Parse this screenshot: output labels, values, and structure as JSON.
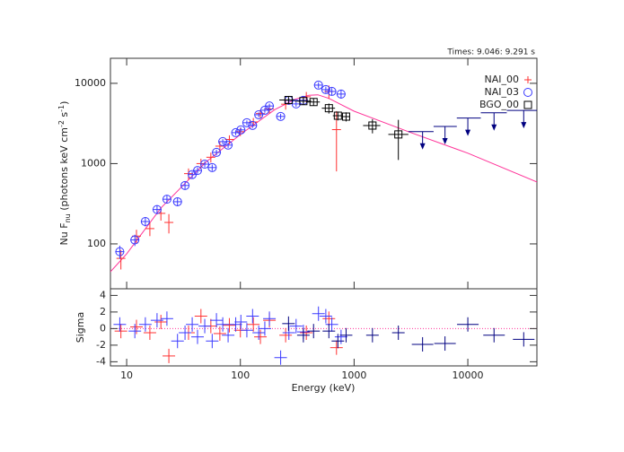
{
  "chart_data": [
    {
      "type": "scatter",
      "annotation": "Times: 9.046: 9.291 s",
      "y_label": [
        "Nu F",
        "nu",
        " (photons keV cm",
        "-2",
        " s",
        "-1",
        ")"
      ],
      "xscale": "log",
      "yscale": "log",
      "xlim": [
        7.2,
        40500
      ],
      "ylim": [
        27.6,
        20500
      ],
      "xticks": [
        10,
        100,
        1000,
        10000
      ],
      "yticks": [
        100,
        1000,
        10000
      ],
      "legend": "upper right",
      "series": [
        {
          "name": "NAI_00",
          "color": "#ff3030",
          "marker": "plus",
          "x": [
            8.9,
            12.2,
            16,
            20,
            23.5,
            35,
            45,
            55,
            66,
            80,
            100,
            130,
            150,
            180,
            250,
            380,
            600,
            700
          ],
          "values": [
            66,
            125,
            155,
            240,
            185,
            750,
            1000,
            1200,
            1650,
            2000,
            2500,
            3300,
            4200,
            4800,
            5500,
            6800,
            7900,
            2650
          ],
          "y_err": [
            18,
            25,
            30,
            45,
            50,
            120,
            150,
            170,
            220,
            250,
            300,
            400,
            500,
            600,
            800,
            1000,
            1500,
            1850
          ]
        },
        {
          "name": "NAI_03",
          "color": "#3a3aff",
          "marker": "circle",
          "x": [
            8.7,
            11.8,
            14.6,
            18.5,
            22.6,
            28,
            32.6,
            37.7,
            42,
            48.6,
            56.5,
            61.6,
            70,
            78,
            91,
            101,
            114,
            128,
            145,
            164,
            180,
            226,
            267,
            309,
            358,
            486,
            564,
            637,
            768
          ],
          "values": [
            80,
            112,
            190,
            268,
            360,
            335,
            534,
            730,
            820,
            985,
            893,
            1380,
            1880,
            1700,
            2430,
            2630,
            3230,
            2990,
            4060,
            4620,
            5220,
            3870,
            6140,
            5540,
            6140,
            9500,
            8350,
            7930,
            7350
          ],
          "y_err": [
            15,
            18,
            25,
            35,
            40,
            40,
            55,
            70,
            75,
            85,
            80,
            110,
            140,
            130,
            170,
            180,
            220,
            210,
            280,
            320,
            360,
            300,
            450,
            420,
            480,
            800,
            750,
            800,
            900
          ]
        },
        {
          "name": "BGO_00",
          "color": "#000000",
          "marker": "square",
          "x": [
            265,
            358,
            440,
            600,
            720,
            850,
            1450,
            2450
          ],
          "values": [
            6200,
            6000,
            5850,
            4900,
            3950,
            3850,
            2980,
            2310
          ],
          "x_lo": [
            220,
            300,
            380,
            520,
            650,
            780,
            1200,
            2000
          ],
          "x_hi": [
            300,
            420,
            500,
            680,
            780,
            920,
            1700,
            3000
          ],
          "y_err": [
            700,
            600,
            600,
            700,
            500,
            500,
            600,
            1200
          ],
          "ul_color": "#000080",
          "ul_x": [
            4000,
            6300,
            10000,
            17000,
            31000
          ],
          "ul_values": [
            2500,
            2900,
            3700,
            4300,
            4600
          ],
          "ul_x_lo": [
            3000,
            5000,
            8000,
            13000,
            22000
          ],
          "ul_x_hi": [
            5000,
            8000,
            13000,
            22000,
            40500
          ]
        }
      ],
      "model": {
        "color": "#ff3399",
        "x": [
          7.2,
          10,
          20,
          50,
          100,
          200,
          300,
          400,
          480,
          600,
          1000,
          3000,
          10000,
          40500
        ],
        "values": [
          45,
          75,
          280,
          1050,
          2300,
          4700,
          6300,
          7100,
          7200,
          6500,
          4500,
          2500,
          1350,
          590
        ]
      }
    },
    {
      "type": "residual",
      "x_label": "Energy (keV)",
      "y_label": "Sigma",
      "xscale": "log",
      "xlim": [
        7.2,
        40500
      ],
      "ylim": [
        -4.5,
        4.8
      ],
      "yticks": [
        -4,
        -2,
        0,
        2,
        4
      ],
      "zero_line_color": "#ff3399",
      "series": [
        {
          "color": "#ff3030",
          "x": [
            8.9,
            12.2,
            16,
            20,
            23.5,
            35,
            45,
            55,
            66,
            80,
            100,
            130,
            150,
            180,
            250,
            380,
            600,
            700
          ],
          "values": [
            -0.3,
            0.2,
            -0.5,
            0.8,
            -3.3,
            -0.5,
            1.5,
            0.3,
            -0.6,
            0.4,
            -0.2,
            0.5,
            -1.0,
            1.0,
            -0.8,
            -0.5,
            1.2,
            -2.3
          ]
        },
        {
          "color": "#3a3aff",
          "x": [
            8.7,
            11.8,
            14.6,
            18.5,
            22.6,
            28,
            32.6,
            37.7,
            42,
            48.6,
            56.5,
            61.6,
            70,
            78,
            91,
            101,
            114,
            128,
            145,
            164,
            180,
            226,
            267,
            309,
            358,
            486,
            564,
            637,
            768
          ],
          "values": [
            0.5,
            -0.3,
            0.5,
            1.0,
            1.2,
            -1.5,
            -0.5,
            0.5,
            -1.0,
            0.3,
            -1.5,
            1.0,
            0.5,
            -0.8,
            0.5,
            0.8,
            -0.2,
            1.5,
            -0.5,
            0.0,
            1.2,
            -3.5,
            -0.5,
            0.3,
            -0.4,
            1.8,
            1.5,
            0.5,
            -1.0
          ]
        },
        {
          "color": "#000080",
          "x": [
            265,
            358,
            440,
            600,
            720,
            850,
            1450,
            2450,
            4000,
            6300,
            10000,
            17000,
            31000
          ],
          "values": [
            0.6,
            -0.8,
            -0.3,
            -0.3,
            -1.5,
            -0.8,
            -0.8,
            -0.5,
            -1.9,
            -1.8,
            0.5,
            -0.8,
            -1.3
          ]
        }
      ]
    }
  ]
}
